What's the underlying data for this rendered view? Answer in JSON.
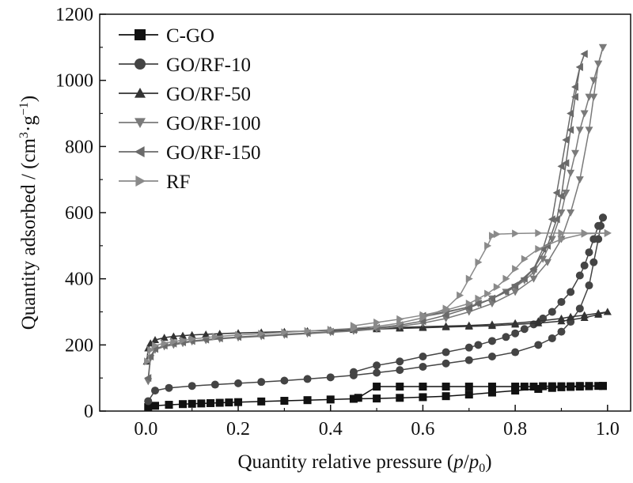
{
  "chart_data": {
    "type": "line",
    "title": "",
    "xlabel": "Quantity relative pressure (p/p0)",
    "xlabel_parts": {
      "prefix": "Quantity relative pressure (",
      "var1": "p",
      "slash": "/",
      "var2": "p",
      "sub": "0",
      "suffix": ")"
    },
    "ylabel": "Quantity adsorbed / (cm3·g−1)",
    "ylabel_parts": {
      "prefix": "Quantity adsorbed / (cm",
      "sup1": "3",
      "mid": "·g",
      "sup2": "−1",
      "suffix": ")"
    },
    "xlim": [
      -0.1,
      1.05
    ],
    "ylim": [
      0,
      1200
    ],
    "xticks": [
      0.0,
      0.2,
      0.4,
      0.6,
      0.8,
      1.0
    ],
    "xtick_labels": [
      "0.0",
      "0.2",
      "0.4",
      "0.6",
      "0.8",
      "1.0"
    ],
    "yticks": [
      0,
      200,
      400,
      600,
      800,
      1000,
      1200
    ],
    "ytick_labels": [
      "0",
      "200",
      "400",
      "600",
      "800",
      "1000",
      "1200"
    ],
    "grid": false,
    "legend_position": "top-left",
    "series": [
      {
        "name": "C-GO",
        "marker": "square",
        "color": "#111111",
        "adsorption": {
          "x": [
            0.005,
            0.02,
            0.05,
            0.08,
            0.1,
            0.12,
            0.14,
            0.16,
            0.18,
            0.2,
            0.25,
            0.3,
            0.35,
            0.4,
            0.45,
            0.5,
            0.55,
            0.6,
            0.65,
            0.7,
            0.75,
            0.8,
            0.85,
            0.88,
            0.9,
            0.92,
            0.94,
            0.96,
            0.98,
            0.99
          ],
          "y": [
            12,
            16,
            19,
            21,
            22,
            23,
            24,
            25,
            26,
            27,
            29,
            31,
            33,
            35,
            37,
            38,
            40,
            42,
            45,
            50,
            56,
            62,
            67,
            70,
            72,
            73,
            74,
            75,
            76,
            76
          ]
        },
        "desorption": {
          "x": [
            0.99,
            0.96,
            0.94,
            0.92,
            0.9,
            0.88,
            0.86,
            0.84,
            0.82,
            0.8,
            0.75,
            0.7,
            0.65,
            0.6,
            0.55,
            0.5,
            0.46
          ],
          "y": [
            76,
            76,
            76,
            75,
            75,
            75,
            75,
            74,
            74,
            74,
            74,
            74,
            74,
            74,
            74,
            74,
            40
          ]
        }
      },
      {
        "name": "GO/RF-10",
        "marker": "circle",
        "color": "#444444",
        "adsorption": {
          "x": [
            0.005,
            0.02,
            0.05,
            0.1,
            0.15,
            0.2,
            0.25,
            0.3,
            0.35,
            0.4,
            0.45,
            0.5,
            0.55,
            0.6,
            0.65,
            0.7,
            0.75,
            0.8,
            0.85,
            0.88,
            0.9,
            0.92,
            0.94,
            0.96,
            0.97,
            0.98,
            0.985,
            0.99
          ],
          "y": [
            30,
            62,
            70,
            76,
            80,
            84,
            88,
            92,
            97,
            102,
            108,
            116,
            124,
            134,
            144,
            154,
            165,
            178,
            200,
            220,
            240,
            270,
            310,
            380,
            450,
            520,
            560,
            585
          ]
        },
        "desorption": {
          "x": [
            0.99,
            0.98,
            0.97,
            0.96,
            0.95,
            0.94,
            0.92,
            0.9,
            0.88,
            0.86,
            0.84,
            0.82,
            0.8,
            0.78,
            0.75,
            0.72,
            0.7,
            0.65,
            0.6,
            0.55,
            0.5,
            0.45
          ],
          "y": [
            585,
            560,
            520,
            480,
            440,
            410,
            360,
            330,
            300,
            280,
            262,
            248,
            235,
            224,
            212,
            200,
            192,
            178,
            165,
            150,
            138,
            118
          ]
        }
      },
      {
        "name": "GO/RF-50",
        "marker": "triangle-up",
        "color": "#333333",
        "adsorption": {
          "x": [
            0.002,
            0.005,
            0.01,
            0.02,
            0.04,
            0.06,
            0.08,
            0.1,
            0.13,
            0.16,
            0.2,
            0.25,
            0.3,
            0.35,
            0.4,
            0.45,
            0.5,
            0.55,
            0.6,
            0.65,
            0.7,
            0.75,
            0.8,
            0.85,
            0.9,
            0.95,
            0.98,
            1.0
          ],
          "y": [
            150,
            190,
            205,
            215,
            222,
            226,
            228,
            230,
            232,
            234,
            236,
            238,
            240,
            242,
            244,
            246,
            248,
            250,
            252,
            254,
            256,
            258,
            262,
            266,
            272,
            282,
            292,
            300
          ]
        },
        "desorption": {
          "x": [
            1.0,
            0.98,
            0.95,
            0.92,
            0.9,
            0.85,
            0.8,
            0.75,
            0.7,
            0.65,
            0.6,
            0.55,
            0.5,
            0.45
          ],
          "y": [
            300,
            296,
            290,
            285,
            280,
            272,
            266,
            262,
            259,
            257,
            255,
            253,
            251,
            249
          ]
        }
      },
      {
        "name": "GO/RF-100",
        "marker": "triangle-down",
        "color": "#7a7a7a",
        "adsorption": {
          "x": [
            0.005,
            0.01,
            0.02,
            0.04,
            0.06,
            0.08,
            0.1,
            0.13,
            0.16,
            0.2,
            0.25,
            0.3,
            0.35,
            0.4,
            0.45,
            0.5,
            0.55,
            0.6,
            0.65,
            0.7,
            0.75,
            0.8,
            0.84,
            0.87,
            0.9,
            0.92,
            0.94,
            0.96,
            0.97,
            0.98,
            0.99
          ],
          "y": [
            90,
            160,
            185,
            195,
            200,
            205,
            210,
            214,
            218,
            222,
            226,
            230,
            234,
            238,
            242,
            248,
            256,
            266,
            280,
            300,
            325,
            360,
            400,
            450,
            520,
            600,
            700,
            850,
            950,
            1050,
            1100
          ]
        },
        "desorption": {
          "x": [
            0.99,
            0.98,
            0.97,
            0.96,
            0.95,
            0.94,
            0.93,
            0.92,
            0.91,
            0.9,
            0.88,
            0.86,
            0.84,
            0.82,
            0.8,
            0.78,
            0.75,
            0.72,
            0.7,
            0.65,
            0.6
          ],
          "y": [
            1100,
            1050,
            1000,
            950,
            900,
            850,
            780,
            720,
            660,
            600,
            520,
            460,
            420,
            395,
            375,
            360,
            340,
            325,
            315,
            298,
            285
          ]
        }
      },
      {
        "name": "GO/RF-150",
        "marker": "triangle-left",
        "color": "#6a6a6a",
        "adsorption": {
          "x": [
            0.005,
            0.01,
            0.02,
            0.04,
            0.06,
            0.08,
            0.1,
            0.13,
            0.16,
            0.2,
            0.25,
            0.3,
            0.35,
            0.4,
            0.45,
            0.5,
            0.55,
            0.6,
            0.65,
            0.7,
            0.75,
            0.8,
            0.84,
            0.87,
            0.89,
            0.9,
            0.91,
            0.92,
            0.93,
            0.94,
            0.95
          ],
          "y": [
            100,
            165,
            188,
            198,
            204,
            208,
            212,
            216,
            220,
            224,
            228,
            232,
            236,
            240,
            245,
            252,
            260,
            272,
            290,
            312,
            340,
            380,
            430,
            500,
            580,
            650,
            750,
            850,
            950,
            1040,
            1080
          ]
        },
        "desorption": {
          "x": [
            0.95,
            0.94,
            0.93,
            0.92,
            0.91,
            0.9,
            0.89,
            0.88,
            0.86,
            0.84,
            0.82,
            0.8,
            0.78,
            0.75,
            0.72,
            0.7,
            0.65,
            0.6
          ],
          "y": [
            1080,
            1040,
            980,
            900,
            820,
            740,
            660,
            580,
            490,
            430,
            400,
            378,
            360,
            340,
            325,
            315,
            300,
            288
          ]
        }
      },
      {
        "name": "RF",
        "marker": "triangle-right",
        "color": "#8a8a8a",
        "adsorption": {
          "x": [
            0.003,
            0.01,
            0.02,
            0.04,
            0.06,
            0.08,
            0.1,
            0.15,
            0.2,
            0.25,
            0.3,
            0.35,
            0.4,
            0.45,
            0.5,
            0.55,
            0.6,
            0.65,
            0.68,
            0.7,
            0.72,
            0.74,
            0.75,
            0.76,
            0.8,
            0.85,
            0.9,
            0.95,
            1.0
          ],
          "y": [
            150,
            185,
            198,
            205,
            210,
            214,
            218,
            225,
            230,
            234,
            238,
            242,
            246,
            250,
            256,
            266,
            282,
            310,
            350,
            400,
            450,
            500,
            530,
            535,
            537,
            538,
            538,
            538,
            538
          ]
        },
        "desorption": {
          "x": [
            1.0,
            0.95,
            0.9,
            0.85,
            0.82,
            0.8,
            0.78,
            0.76,
            0.74,
            0.72,
            0.7,
            0.65,
            0.6,
            0.55,
            0.5,
            0.45
          ],
          "y": [
            538,
            536,
            520,
            490,
            460,
            430,
            400,
            375,
            355,
            340,
            325,
            305,
            290,
            278,
            268,
            258
          ]
        }
      }
    ]
  }
}
